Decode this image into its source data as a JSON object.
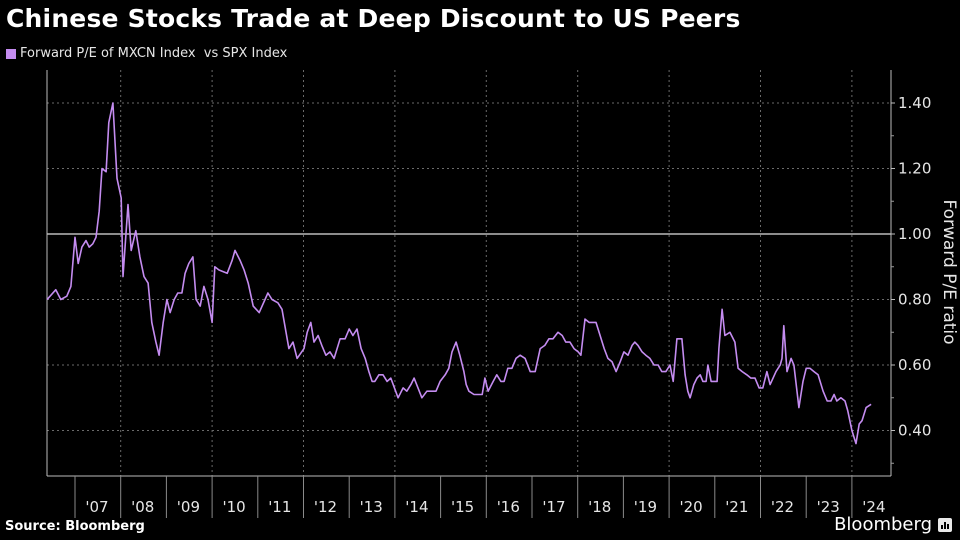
{
  "header": {
    "title": "Chinese Stocks Trade at Deep Discount to US Peers"
  },
  "footer": {
    "source": "Source: Bloomberg",
    "brand": "Bloomberg"
  },
  "chart_data": {
    "type": "line",
    "title": "Chinese Stocks Trade at Deep Discount to US Peers",
    "xlabel": "",
    "ylabel": "Forward P/E ratio",
    "ylim": [
      0.257,
      1.5
    ],
    "xlim": [
      2006.39,
      2024.85
    ],
    "yticks": [
      0.4,
      0.6,
      0.8,
      1.0,
      1.2,
      1.4
    ],
    "ytick_labels": [
      "0.40",
      "0.60",
      "0.80",
      "1.00",
      "1.20",
      "1.40"
    ],
    "xtick_labels": [
      "'07",
      "'08",
      "'09",
      "'10",
      "'11",
      "'12",
      "'13",
      "'14",
      "'15",
      "'16",
      "'17",
      "'18",
      "'19",
      "'20",
      "'21",
      "'22",
      "'23",
      "'24"
    ],
    "xtick_years": [
      2007,
      2008,
      2009,
      2010,
      2011,
      2012,
      2013,
      2014,
      2015,
      2016,
      2017,
      2018,
      2019,
      2020,
      2021,
      2022,
      2023,
      2024
    ],
    "reference_line": 1.0,
    "grid": true,
    "legend_position": "top-left",
    "series": [
      {
        "name": "Forward P/E of MXCN Index  vs SPX Index",
        "color": "#c48cf0",
        "x": [
          2006.39,
          2006.58,
          2006.69,
          2006.82,
          2006.91,
          2007.0,
          2007.07,
          2007.15,
          2007.24,
          2007.31,
          2007.39,
          2007.46,
          2007.53,
          2007.59,
          2007.68,
          2007.74,
          2007.83,
          2007.92,
          2008.01,
          2008.05,
          2008.16,
          2008.23,
          2008.33,
          2008.42,
          2008.51,
          2008.6,
          2008.68,
          2008.77,
          2008.84,
          2008.93,
          2009.01,
          2009.08,
          2009.17,
          2009.25,
          2009.34,
          2009.41,
          2009.49,
          2009.58,
          2009.65,
          2009.74,
          2009.82,
          2009.91,
          2010.0,
          2010.06,
          2010.15,
          2010.33,
          2010.44,
          2010.5,
          2010.61,
          2010.7,
          2010.79,
          2010.9,
          2011.03,
          2011.22,
          2011.31,
          2011.44,
          2011.53,
          2011.68,
          2011.77,
          2011.86,
          2012.01,
          2012.08,
          2012.16,
          2012.23,
          2012.32,
          2012.4,
          2012.49,
          2012.58,
          2012.67,
          2012.8,
          2012.91,
          2013.0,
          2013.08,
          2013.17,
          2013.26,
          2013.35,
          2013.43,
          2013.5,
          2013.56,
          2013.65,
          2013.74,
          2013.83,
          2013.91,
          2014.07,
          2014.18,
          2014.26,
          2014.35,
          2014.42,
          2014.59,
          2014.7,
          2014.9,
          2014.99,
          2015.1,
          2015.18,
          2015.25,
          2015.34,
          2015.42,
          2015.51,
          2015.56,
          2015.62,
          2015.73,
          2015.84,
          2015.91,
          2015.97,
          2016.04,
          2016.15,
          2016.23,
          2016.32,
          2016.39,
          2016.47,
          2016.56,
          2016.65,
          2016.74,
          2016.85,
          2016.96,
          2017.07,
          2017.18,
          2017.28,
          2017.37,
          2017.46,
          2017.57,
          2017.66,
          2017.74,
          2017.83,
          2017.92,
          2018.01,
          2018.07,
          2018.16,
          2018.25,
          2018.4,
          2018.49,
          2018.58,
          2018.66,
          2018.75,
          2018.84,
          2018.93,
          2019.01,
          2019.1,
          2019.19,
          2019.25,
          2019.32,
          2019.41,
          2019.49,
          2019.58,
          2019.67,
          2019.76,
          2019.84,
          2019.93,
          2020.02,
          2020.09,
          2020.17,
          2020.28,
          2020.35,
          2020.41,
          2020.46,
          2020.54,
          2020.61,
          2020.68,
          2020.74,
          2020.81,
          2020.85,
          2020.92,
          2020.98,
          2021.05,
          2021.09,
          2021.16,
          2021.22,
          2021.33,
          2021.44,
          2021.51,
          2021.6,
          2021.7,
          2021.79,
          2021.88,
          2021.97,
          2022.05,
          2022.14,
          2022.21,
          2022.34,
          2022.43,
          2022.47,
          2022.51,
          2022.58,
          2022.67,
          2022.73,
          2022.84,
          2022.93,
          2023.0,
          2023.08,
          2023.17,
          2023.26,
          2023.37,
          2023.46,
          2023.54,
          2023.61,
          2023.67,
          2023.76,
          2023.85,
          2023.91,
          2024.0,
          2024.09,
          2024.16,
          2024.22,
          2024.31,
          2024.42
        ],
        "values": [
          0.8,
          0.83,
          0.8,
          0.81,
          0.84,
          0.99,
          0.91,
          0.96,
          0.98,
          0.96,
          0.97,
          0.99,
          1.07,
          1.2,
          1.19,
          1.34,
          1.4,
          1.17,
          1.11,
          0.87,
          1.09,
          0.95,
          1.01,
          0.93,
          0.87,
          0.85,
          0.73,
          0.67,
          0.63,
          0.73,
          0.8,
          0.76,
          0.8,
          0.82,
          0.82,
          0.88,
          0.91,
          0.93,
          0.8,
          0.78,
          0.84,
          0.8,
          0.73,
          0.9,
          0.89,
          0.88,
          0.92,
          0.95,
          0.92,
          0.89,
          0.85,
          0.78,
          0.76,
          0.82,
          0.8,
          0.79,
          0.77,
          0.65,
          0.67,
          0.62,
          0.65,
          0.7,
          0.73,
          0.67,
          0.69,
          0.66,
          0.63,
          0.64,
          0.62,
          0.68,
          0.68,
          0.71,
          0.69,
          0.71,
          0.65,
          0.62,
          0.58,
          0.55,
          0.55,
          0.57,
          0.57,
          0.55,
          0.56,
          0.5,
          0.53,
          0.52,
          0.54,
          0.56,
          0.5,
          0.52,
          0.52,
          0.55,
          0.57,
          0.59,
          0.64,
          0.67,
          0.63,
          0.58,
          0.54,
          0.52,
          0.51,
          0.51,
          0.51,
          0.56,
          0.52,
          0.55,
          0.57,
          0.55,
          0.55,
          0.59,
          0.59,
          0.62,
          0.63,
          0.62,
          0.58,
          0.58,
          0.65,
          0.66,
          0.68,
          0.68,
          0.7,
          0.69,
          0.67,
          0.67,
          0.65,
          0.64,
          0.63,
          0.74,
          0.73,
          0.73,
          0.69,
          0.65,
          0.62,
          0.61,
          0.58,
          0.61,
          0.64,
          0.63,
          0.66,
          0.67,
          0.66,
          0.64,
          0.63,
          0.62,
          0.6,
          0.6,
          0.58,
          0.58,
          0.6,
          0.55,
          0.68,
          0.68,
          0.57,
          0.52,
          0.5,
          0.54,
          0.56,
          0.57,
          0.55,
          0.55,
          0.6,
          0.55,
          0.55,
          0.55,
          0.65,
          0.77,
          0.69,
          0.7,
          0.67,
          0.59,
          0.58,
          0.57,
          0.56,
          0.56,
          0.53,
          0.53,
          0.58,
          0.54,
          0.58,
          0.6,
          0.62,
          0.72,
          0.58,
          0.62,
          0.6,
          0.47,
          0.55,
          0.59,
          0.59,
          0.58,
          0.57,
          0.52,
          0.49,
          0.49,
          0.51,
          0.49,
          0.5,
          0.49,
          0.46,
          0.4,
          0.36,
          0.42,
          0.43,
          0.47,
          0.48
        ]
      }
    ]
  }
}
